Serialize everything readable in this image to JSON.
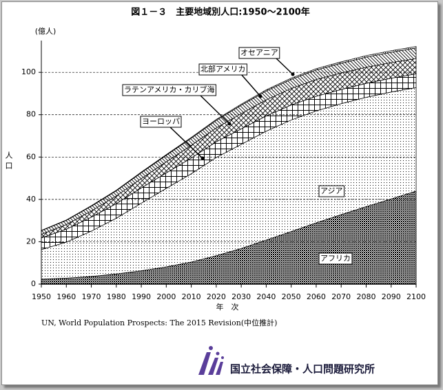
{
  "chart_data": {
    "type": "area",
    "stacked": true,
    "title": "図１－３　主要地域別人口:1950～2100年",
    "y_unit": "(億人)",
    "y_label": "人口",
    "x_label": "年　次",
    "source": "UN, World Population Prospects: The 2015 Revision(中位推計)",
    "organization": "国立社会保障・人口問題研究所",
    "x": [
      1950,
      1960,
      1970,
      1980,
      1990,
      2000,
      2010,
      2020,
      2030,
      2040,
      2050,
      2060,
      2070,
      2080,
      2090,
      2100
    ],
    "xlim": [
      1950,
      2100
    ],
    "xticks": [
      1950,
      1960,
      1970,
      1980,
      1990,
      2000,
      2010,
      2020,
      2030,
      2040,
      2050,
      2060,
      2070,
      2080,
      2090,
      2100
    ],
    "ylim": [
      0,
      115
    ],
    "yticks": [
      0,
      20,
      40,
      60,
      80,
      100
    ],
    "grid": true,
    "series": [
      {
        "name": "アフリカ",
        "color": "#000000",
        "values": [
          2.3,
          2.8,
          3.6,
          4.8,
          6.3,
          8.1,
          10.4,
          13.4,
          16.8,
          20.8,
          24.8,
          28.9,
          32.8,
          36.6,
          40.2,
          43.9
        ]
      },
      {
        "name": "アジア",
        "color": "#000000",
        "values": [
          14.0,
          17.0,
          21.4,
          26.3,
          31.9,
          37.1,
          41.7,
          46.4,
          49.2,
          51.4,
          52.7,
          52.9,
          52.4,
          51.6,
          50.5,
          48.9
        ]
      },
      {
        "name": "ヨーロッパ",
        "color": "#000000",
        "values": [
          5.5,
          6.1,
          6.6,
          6.9,
          7.2,
          7.3,
          7.4,
          7.4,
          7.3,
          7.2,
          7.1,
          6.9,
          6.7,
          6.6,
          6.5,
          6.5
        ]
      },
      {
        "name": "ラテンアメリカ・カリブ海",
        "color": "#000000",
        "values": [
          1.7,
          2.2,
          2.9,
          3.6,
          4.4,
          5.2,
          6.0,
          6.5,
          7.2,
          7.6,
          7.8,
          7.9,
          7.8,
          7.6,
          7.4,
          7.2
        ]
      },
      {
        "name": "北部アメリカ",
        "color": "#000000",
        "values": [
          1.7,
          2.0,
          2.3,
          2.5,
          2.8,
          3.1,
          3.4,
          3.6,
          4.0,
          4.2,
          4.3,
          4.5,
          4.6,
          4.8,
          4.9,
          5.0
        ]
      },
      {
        "name": "オセアニア",
        "color": "#000000",
        "values": [
          0.13,
          0.16,
          0.2,
          0.23,
          0.27,
          0.31,
          0.37,
          0.42,
          0.48,
          0.53,
          0.57,
          0.61,
          0.65,
          0.68,
          0.7,
          0.71
        ]
      }
    ]
  }
}
